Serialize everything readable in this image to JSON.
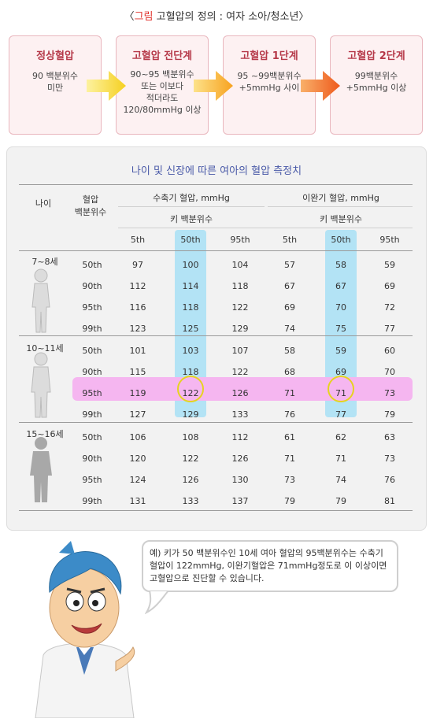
{
  "title": {
    "bracket_open": "〈",
    "highlight": "그림",
    "text": " 고혈압의 정의 : 여자 소아/청소년",
    "bracket_close": "〉"
  },
  "stages": [
    {
      "heading": "정상혈압",
      "desc": "90 백분위수\n미만"
    },
    {
      "heading": "고혈압 전단계",
      "desc": "90~95 백분위수\n또는 이보다\n적더라도\n120/80mmHg 이상"
    },
    {
      "heading": "고혈압 1단계",
      "desc": "95 ~99백분위수\n+5mmHg 사이"
    },
    {
      "heading": "고혈압 2단계",
      "desc": "99백분위수\n+5mmHg 이상"
    }
  ],
  "table": {
    "title": "나이 및 신장에 따른 여아의 혈압 측정치",
    "col_age": "나이",
    "col_pct": "혈압\n백분위수",
    "systolic": "수축기 혈압, mmHg",
    "diastolic": "이완기 혈압, mmHg",
    "height_pct": "키 백분위수",
    "height_cols": [
      "5th",
      "50th",
      "95th",
      "5th",
      "50th",
      "95th"
    ],
    "groups": [
      {
        "age": "7~8세",
        "rows": [
          {
            "pct": "50th",
            "v": [
              "97",
              "100",
              "104",
              "57",
              "58",
              "59"
            ]
          },
          {
            "pct": "90th",
            "v": [
              "112",
              "114",
              "118",
              "67",
              "67",
              "69"
            ]
          },
          {
            "pct": "95th",
            "v": [
              "116",
              "118",
              "122",
              "69",
              "70",
              "72"
            ]
          },
          {
            "pct": "99th",
            "v": [
              "123",
              "125",
              "129",
              "74",
              "75",
              "77"
            ]
          }
        ]
      },
      {
        "age": "10~11세",
        "rows": [
          {
            "pct": "50th",
            "v": [
              "101",
              "103",
              "107",
              "58",
              "59",
              "60"
            ]
          },
          {
            "pct": "90th",
            "v": [
              "115",
              "118",
              "122",
              "68",
              "69",
              "70"
            ]
          },
          {
            "pct": "95th",
            "v": [
              "119",
              "122",
              "126",
              "71",
              "71",
              "73"
            ]
          },
          {
            "pct": "99th",
            "v": [
              "127",
              "129",
              "133",
              "76",
              "77",
              "79"
            ]
          }
        ]
      },
      {
        "age": "15~16세",
        "rows": [
          {
            "pct": "50th",
            "v": [
              "106",
              "108",
              "112",
              "61",
              "62",
              "63"
            ]
          },
          {
            "pct": "90th",
            "v": [
              "120",
              "122",
              "126",
              "71",
              "71",
              "73"
            ]
          },
          {
            "pct": "95th",
            "v": [
              "124",
              "126",
              "130",
              "73",
              "74",
              "76"
            ]
          },
          {
            "pct": "99th",
            "v": [
              "131",
              "133",
              "137",
              "79",
              "79",
              "81"
            ]
          }
        ]
      }
    ]
  },
  "colors": {
    "highlight_column": "#b3e3f5",
    "highlight_row": "#f5b6f0",
    "ring": "#e6d320",
    "stage_border": "#e9b7be",
    "stage_fill": "#fdf1f2"
  },
  "note": "예) 키가 50 백분위수인 10세 여아 혈압의 95백분위수는 수축기 혈압이 122mmHg, 이완기혈압은 71mmHg정도로 이 이상이면 고혈압으로 진단할 수 있습니다."
}
